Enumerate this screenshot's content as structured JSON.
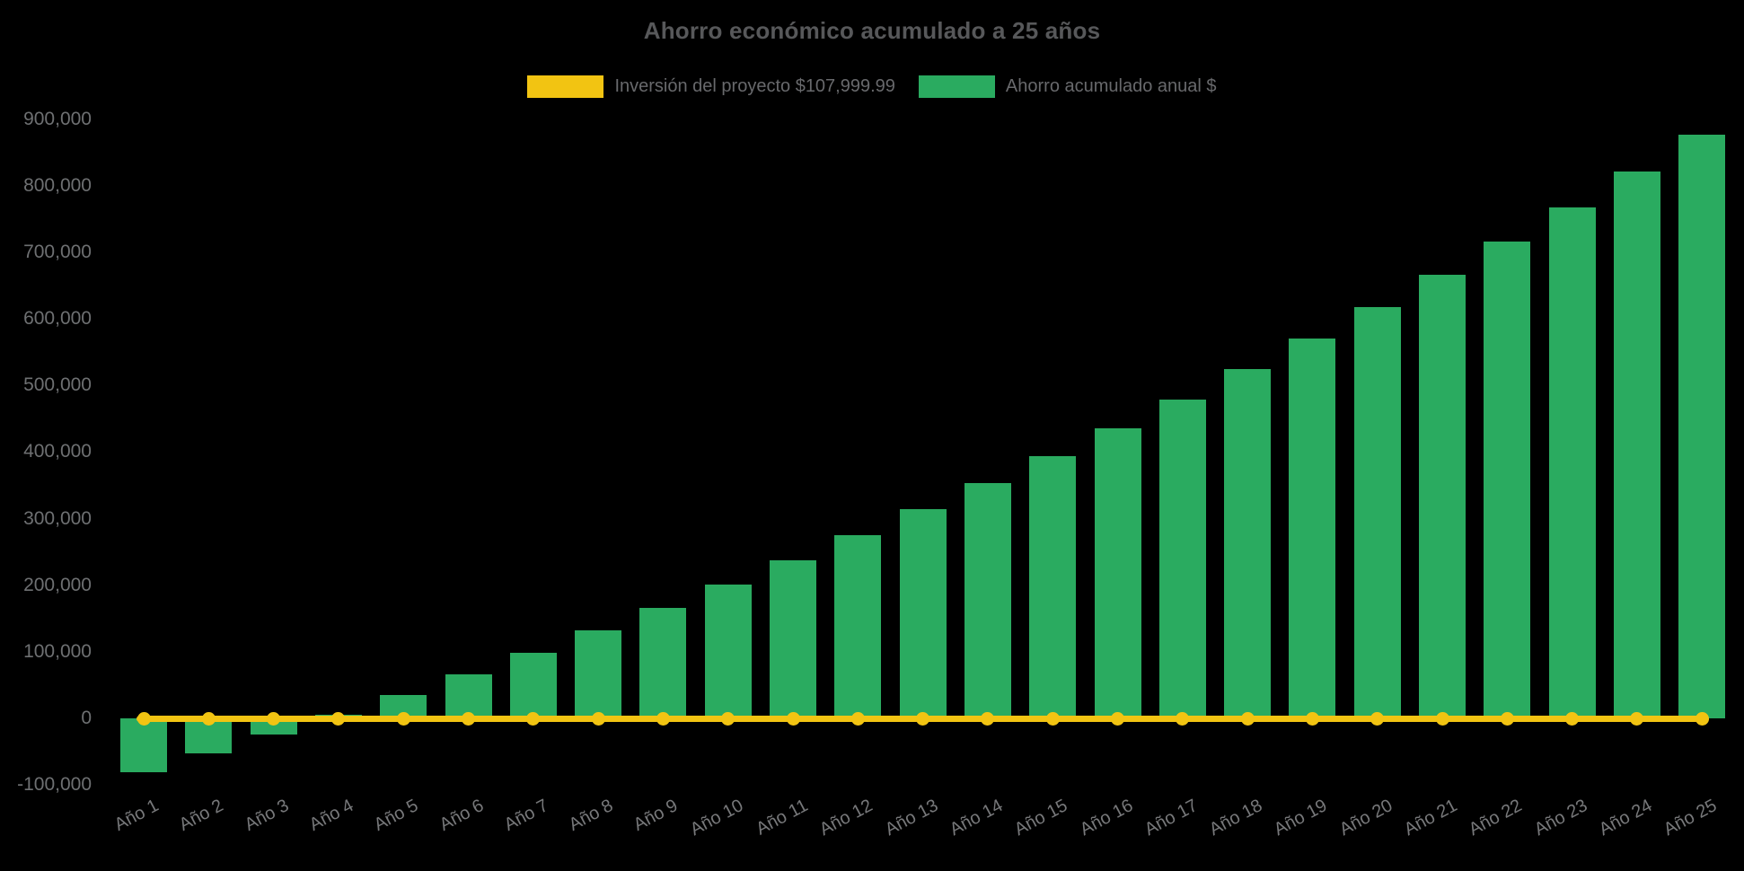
{
  "chart": {
    "title": "Ahorro económico acumulado a 25 años"
  },
  "chart_data": {
    "type": "bar",
    "title": "Ahorro económico acumulado a 25 años",
    "categories": [
      "Año 1",
      "Año 2",
      "Año 3",
      "Año 4",
      "Año 5",
      "Año 6",
      "Año 7",
      "Año 8",
      "Año 9",
      "Año 10",
      "Año 11",
      "Año 12",
      "Año 13",
      "Año 14",
      "Año 15",
      "Año 16",
      "Año 17",
      "Año 18",
      "Año 19",
      "Año 20",
      "Año 21",
      "Año 22",
      "Año 23",
      "Año 24",
      "Año 25"
    ],
    "series": [
      {
        "name": "Inversión del proyecto $107,999.99",
        "type": "line",
        "color": "#f2c412",
        "marker": "circle",
        "values": [
          0,
          0,
          0,
          0,
          0,
          0,
          0,
          0,
          0,
          0,
          0,
          0,
          0,
          0,
          0,
          0,
          0,
          0,
          0,
          0,
          0,
          0,
          0,
          0,
          0
        ]
      },
      {
        "name": "Ahorro acumulado anual $",
        "type": "bar",
        "color": "#2aab60",
        "values": [
          -81000,
          -53190,
          -24546,
          4958,
          35346,
          66647,
          98886,
          132093,
          166296,
          201524,
          237810,
          275184,
          313680,
          353330,
          394170,
          436235,
          479562,
          524189,
          570154,
          617499,
          666264,
          716492,
          768226,
          821513,
          876398
        ]
      }
    ],
    "xlabel": "",
    "ylabel": "",
    "ylim": [
      -100000,
      900000
    ],
    "y_tick_step": 100000,
    "y_tick_labels": [
      "900,000",
      "800,000",
      "700,000",
      "600,000",
      "500,000",
      "400,000",
      "300,000",
      "200,000",
      "100,000",
      "0",
      "-100,000"
    ],
    "grid": false,
    "legend_position": "top",
    "background": "#000000",
    "text_colors": {
      "title": "#57585a",
      "legend": "#68696c",
      "y_ticks": "#6e7072",
      "x_ticks": "#77787a"
    }
  }
}
